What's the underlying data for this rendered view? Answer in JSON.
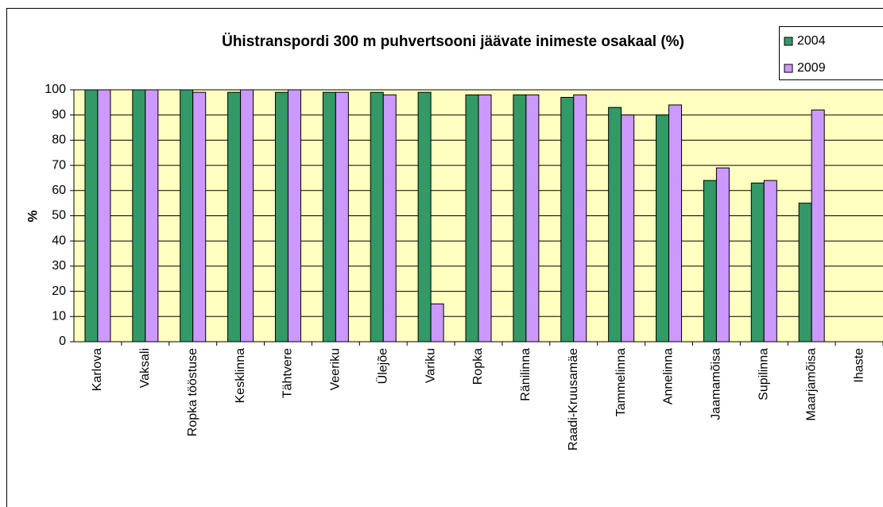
{
  "chart_data": {
    "type": "bar",
    "title": "Ühistranspordi 300 m puhvertsooni jäävate inimeste osakaal (%)",
    "y_label": "%",
    "categories": [
      "Karlova",
      "Vaksali",
      "Ropka tööstuse",
      "Kesklinna",
      "Tähtvere",
      "Veeriku",
      "Ülejõe",
      "Variku",
      "Ropka",
      "Ränilinna",
      "Raadi-Kruusamäe",
      "Tammelinna",
      "Annelinna",
      "Jaamamõisa",
      "Supilinna",
      "Maarjamõisa",
      "Ihaste"
    ],
    "series": [
      {
        "name": "2004",
        "color": "#339966",
        "values": [
          100,
          100,
          100,
          99,
          99,
          99,
          99,
          99,
          98,
          98,
          97,
          93,
          90,
          64,
          63,
          55,
          null
        ]
      },
      {
        "name": "2009",
        "color": "#cc99ff",
        "values": [
          100,
          100,
          99,
          100,
          100,
          99,
          98,
          15,
          98,
          98,
          98,
          90,
          94,
          69,
          64,
          92,
          null
        ]
      }
    ],
    "ylim": [
      0,
      100
    ],
    "yticks": [
      0,
      10,
      20,
      30,
      40,
      50,
      60,
      70,
      80,
      90,
      100
    ],
    "grid": true,
    "legend": "top-right"
  }
}
